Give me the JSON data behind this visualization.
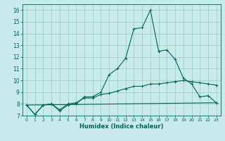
{
  "title": "",
  "xlabel": "Humidex (Indice chaleur)",
  "xlim": [
    -0.5,
    23.5
  ],
  "ylim": [
    7,
    16.5
  ],
  "yticks": [
    7,
    8,
    9,
    10,
    11,
    12,
    13,
    14,
    15,
    16
  ],
  "xticks": [
    0,
    1,
    2,
    3,
    4,
    5,
    6,
    7,
    8,
    9,
    10,
    11,
    12,
    13,
    14,
    15,
    16,
    17,
    18,
    19,
    20,
    21,
    22,
    23
  ],
  "bg_color": "#c8eaea",
  "grid_color": "#99ccbb",
  "line_color": "#006655",
  "line1_x": [
    0,
    1,
    2,
    3,
    4,
    5,
    6,
    7,
    8,
    9,
    10,
    11,
    12,
    13,
    14,
    15,
    16,
    17,
    18,
    19,
    20,
    21,
    22,
    23
  ],
  "line1_y": [
    7.9,
    7.1,
    7.9,
    8.0,
    7.4,
    7.9,
    8.0,
    8.6,
    8.6,
    9.0,
    10.5,
    11.0,
    11.9,
    14.4,
    14.5,
    16.0,
    12.5,
    12.6,
    11.8,
    10.2,
    9.7,
    8.6,
    8.7,
    8.1
  ],
  "line2_x": [
    0,
    1,
    2,
    3,
    4,
    5,
    6,
    7,
    8,
    9,
    10,
    11,
    12,
    13,
    14,
    15,
    16,
    17,
    18,
    19,
    20,
    21,
    22,
    23
  ],
  "line2_y": [
    7.9,
    7.1,
    7.9,
    8.0,
    7.5,
    8.0,
    8.1,
    8.5,
    8.5,
    8.8,
    8.9,
    9.1,
    9.3,
    9.5,
    9.5,
    9.7,
    9.7,
    9.8,
    9.9,
    10.0,
    9.9,
    9.8,
    9.7,
    9.6
  ],
  "line3_x": [
    0,
    23
  ],
  "line3_y": [
    7.9,
    8.1
  ]
}
